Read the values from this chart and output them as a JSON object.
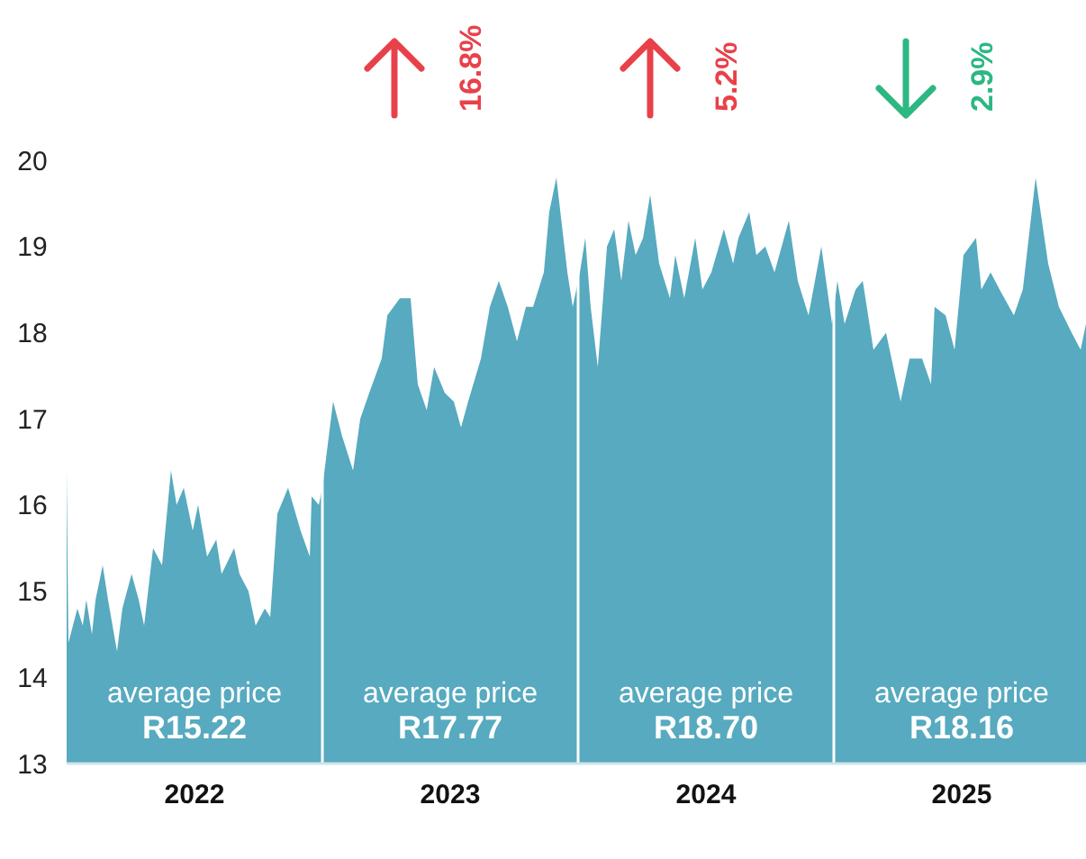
{
  "chart_data": {
    "type": "area",
    "x": [
      2022.0,
      2022.007,
      2022.042,
      2022.063,
      2022.077,
      2022.099,
      2022.113,
      2022.141,
      2022.162,
      2022.197,
      2022.218,
      2022.254,
      2022.282,
      2022.303,
      2022.338,
      2022.373,
      2022.408,
      2022.43,
      2022.458,
      2022.493,
      2022.514,
      2022.549,
      2022.585,
      2022.606,
      2022.655,
      2022.676,
      2022.711,
      2022.739,
      2022.775,
      2022.796,
      2022.824,
      2022.866,
      2022.915,
      2022.951,
      2022.958,
      2022.986,
      2023.0,
      2023.042,
      2023.077,
      2023.12,
      2023.148,
      2023.183,
      2023.232,
      2023.254,
      2023.303,
      2023.345,
      2023.373,
      2023.408,
      2023.437,
      2023.479,
      2023.514,
      2023.542,
      2023.57,
      2023.62,
      2023.655,
      2023.69,
      2023.725,
      2023.761,
      2023.796,
      2023.824,
      2023.866,
      2023.887,
      2023.915,
      2023.958,
      2023.979,
      2024.007,
      2024.028,
      2024.049,
      2024.077,
      2024.113,
      2024.141,
      2024.169,
      2024.197,
      2024.225,
      2024.254,
      2024.282,
      2024.317,
      2024.359,
      2024.38,
      2024.415,
      2024.458,
      2024.486,
      2024.521,
      2024.57,
      2024.606,
      2024.627,
      2024.669,
      2024.697,
      2024.732,
      2024.768,
      2024.824,
      2024.859,
      2024.901,
      2024.951,
      2024.993,
      2025.014,
      2025.042,
      2025.085,
      2025.113,
      2025.155,
      2025.204,
      2025.261,
      2025.296,
      2025.345,
      2025.38,
      2025.394,
      2025.437,
      2025.472,
      2025.507,
      2025.556,
      2025.577,
      2025.613,
      2025.648,
      2025.704,
      2025.739,
      2025.789,
      2025.838,
      2025.88,
      2025.93,
      2025.965,
      2025.986
    ],
    "series": [
      {
        "color": "#57aabf",
        "values": [
          16.4,
          14.4,
          14.8,
          14.6,
          14.9,
          14.5,
          14.9,
          15.3,
          14.9,
          14.3,
          14.8,
          15.2,
          14.9,
          14.6,
          15.5,
          15.3,
          16.4,
          16.0,
          16.2,
          15.7,
          16.0,
          15.4,
          15.6,
          15.2,
          15.5,
          15.2,
          15.0,
          14.6,
          14.8,
          14.7,
          15.9,
          16.2,
          15.7,
          15.4,
          16.1,
          16.0,
          16.2,
          17.2,
          16.8,
          16.4,
          17.0,
          17.3,
          17.7,
          18.2,
          18.4,
          18.4,
          17.4,
          17.1,
          17.6,
          17.3,
          17.2,
          16.9,
          17.2,
          17.7,
          18.3,
          18.6,
          18.3,
          17.9,
          18.3,
          18.3,
          18.7,
          19.4,
          19.8,
          18.7,
          18.3,
          18.7,
          19.1,
          18.3,
          17.6,
          19.0,
          19.2,
          18.6,
          19.3,
          18.9,
          19.1,
          19.6,
          18.8,
          18.4,
          18.9,
          18.4,
          19.1,
          18.5,
          18.7,
          19.2,
          18.8,
          19.1,
          19.4,
          18.9,
          19.0,
          18.7,
          19.3,
          18.6,
          18.2,
          19.0,
          18.1,
          18.6,
          18.1,
          18.5,
          18.6,
          17.8,
          18.0,
          17.2,
          17.7,
          17.7,
          17.4,
          18.3,
          18.2,
          17.8,
          18.9,
          19.1,
          18.5,
          18.7,
          18.5,
          18.2,
          18.5,
          19.8,
          18.8,
          18.3,
          18.0,
          17.8,
          18.1
        ]
      }
    ],
    "xlim": [
      2022.0,
      2025.986
    ],
    "xticks": [
      {
        "value": 2022.5,
        "label": "2022"
      },
      {
        "value": 2023.5,
        "label": "2023"
      },
      {
        "value": 2024.5,
        "label": "2024"
      },
      {
        "value": 2025.5,
        "label": "2025"
      }
    ],
    "ylim": [
      13,
      20
    ],
    "yticks": [
      13,
      14,
      15,
      16,
      17,
      18,
      19,
      20
    ],
    "ref_lines": [
      {
        "axis": "x",
        "value": 2023,
        "color": "#ffffff"
      },
      {
        "axis": "x",
        "value": 2024,
        "color": "#ffffff"
      },
      {
        "axis": "x",
        "value": 2025,
        "color": "#ffffff"
      }
    ],
    "annotations": [
      "16.8%",
      "5.2%",
      "2.9%",
      "average price\nR15.22",
      "average price\nR17.77",
      "average price\nR18.70",
      "average price\nR18.16"
    ],
    "grid": false
  }
}
